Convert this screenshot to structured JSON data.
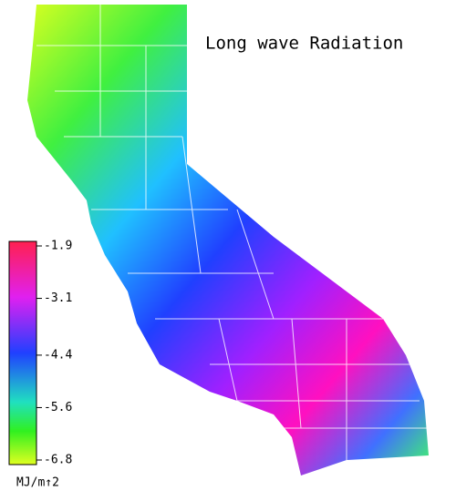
{
  "title": "Long wave Radiation",
  "legend": {
    "lim": [
      -6.8,
      -1.9
    ],
    "ticks": [
      -1.9,
      -3.1,
      -4.4,
      -5.6,
      -6.8
    ],
    "unit": "MJ/m↑2"
  }
}
